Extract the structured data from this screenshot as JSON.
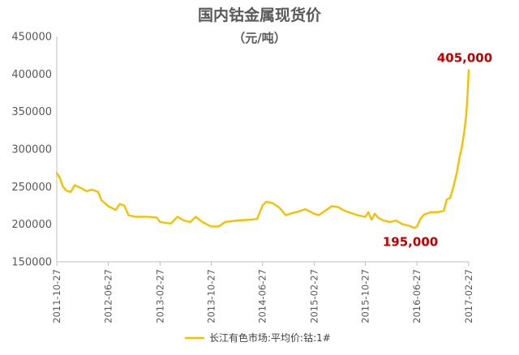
{
  "chart_data": {
    "type": "line",
    "title": "国内钴金属现货价",
    "subtitle": "（元/吨）",
    "xlabel": "",
    "ylabel": "",
    "ylim": [
      150000,
      450000
    ],
    "yticks": [
      "150000",
      "200000",
      "250000",
      "300000",
      "350000",
      "400000",
      "450000"
    ],
    "xticks": [
      "2011-10-27",
      "2012-06-27",
      "2013-02-27",
      "2013-10-27",
      "2014-06-27",
      "2015-02-27",
      "2015-10-27",
      "2016-06-27",
      "2017-02-27"
    ],
    "grid": false,
    "legend": "bottom",
    "series": [
      {
        "name": "长江有色市场:平均价:钴:1#",
        "color": "#f5c000",
        "points": [
          [
            "2011-10-27",
            268000
          ],
          [
            "2011-11-10",
            262000
          ],
          [
            "2011-11-25",
            250000
          ],
          [
            "2011-12-10",
            245000
          ],
          [
            "2012-01-01",
            243000
          ],
          [
            "2012-01-20",
            252000
          ],
          [
            "2012-02-20",
            248000
          ],
          [
            "2012-03-15",
            244000
          ],
          [
            "2012-04-10",
            246000
          ],
          [
            "2012-05-10",
            243000
          ],
          [
            "2012-05-25",
            232000
          ],
          [
            "2012-06-27",
            224000
          ],
          [
            "2012-08-01",
            219000
          ],
          [
            "2012-08-20",
            227000
          ],
          [
            "2012-09-10",
            225000
          ],
          [
            "2012-10-01",
            212000
          ],
          [
            "2012-11-01",
            210000
          ],
          [
            "2013-01-01",
            210000
          ],
          [
            "2013-02-10",
            209000
          ],
          [
            "2013-02-27",
            203000
          ],
          [
            "2013-03-20",
            202000
          ],
          [
            "2013-04-20",
            201000
          ],
          [
            "2013-05-20",
            210000
          ],
          [
            "2013-06-20",
            205000
          ],
          [
            "2013-07-20",
            203000
          ],
          [
            "2013-08-15",
            210000
          ],
          [
            "2013-09-15",
            203000
          ],
          [
            "2013-10-27",
            197000
          ],
          [
            "2013-12-01",
            197000
          ],
          [
            "2014-01-01",
            203000
          ],
          [
            "2014-03-01",
            205000
          ],
          [
            "2014-05-01",
            206000
          ],
          [
            "2014-06-01",
            207000
          ],
          [
            "2014-06-27",
            225000
          ],
          [
            "2014-07-15",
            230000
          ],
          [
            "2014-08-15",
            228000
          ],
          [
            "2014-09-15",
            222000
          ],
          [
            "2014-10-15",
            212000
          ],
          [
            "2014-11-15",
            215000
          ],
          [
            "2014-12-15",
            217000
          ],
          [
            "2015-01-15",
            220000
          ],
          [
            "2015-02-27",
            214000
          ],
          [
            "2015-03-20",
            212000
          ],
          [
            "2015-04-20",
            218000
          ],
          [
            "2015-05-20",
            224000
          ],
          [
            "2015-06-20",
            223000
          ],
          [
            "2015-07-20",
            218000
          ],
          [
            "2015-08-20",
            215000
          ],
          [
            "2015-09-20",
            212000
          ],
          [
            "2015-10-27",
            210000
          ],
          [
            "2015-11-10",
            216000
          ],
          [
            "2015-11-25",
            206000
          ],
          [
            "2015-12-10",
            214000
          ],
          [
            "2015-12-25",
            209000
          ],
          [
            "2016-01-20",
            205000
          ],
          [
            "2016-02-20",
            203000
          ],
          [
            "2016-03-20",
            205000
          ],
          [
            "2016-04-20",
            200000
          ],
          [
            "2016-05-20",
            198000
          ],
          [
            "2016-06-15",
            195000
          ],
          [
            "2016-06-27",
            197000
          ],
          [
            "2016-07-15",
            208000
          ],
          [
            "2016-08-01",
            213000
          ],
          [
            "2016-09-01",
            216000
          ],
          [
            "2016-10-01",
            216000
          ],
          [
            "2016-11-01",
            218000
          ],
          [
            "2016-11-15",
            233000
          ],
          [
            "2016-12-01",
            235000
          ],
          [
            "2016-12-15",
            248000
          ],
          [
            "2017-01-01",
            268000
          ],
          [
            "2017-01-15",
            290000
          ],
          [
            "2017-01-25",
            302000
          ],
          [
            "2017-02-05",
            322000
          ],
          [
            "2017-02-15",
            345000
          ],
          [
            "2017-02-22",
            375000
          ],
          [
            "2017-02-27",
            405000
          ]
        ]
      }
    ],
    "annotations": [
      {
        "text": "405,000",
        "x": "2017-02-27",
        "y": 405000
      },
      {
        "text": "195,000",
        "x": "2016-06-15",
        "y": 195000
      }
    ]
  }
}
